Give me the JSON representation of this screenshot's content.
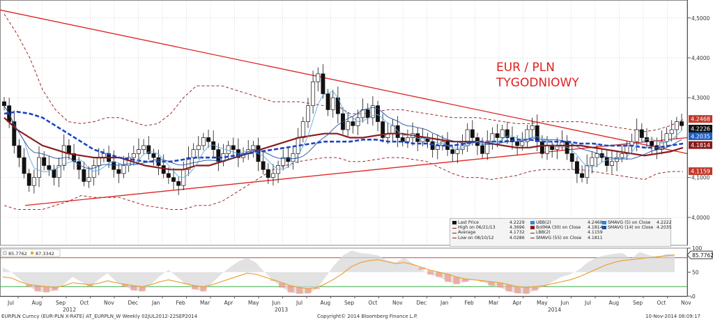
{
  "chart_data": [
    {
      "type": "candlestick",
      "title": "EUR / PLN",
      "subtitle": "TYGODNIOWY",
      "ylim": [
        3.93,
        4.545
      ],
      "y_ticks": [
        "4,5000",
        "4,4000",
        "4,3000",
        "4,1000",
        "4,0000"
      ],
      "y_tick_values": [
        4.5,
        4.4,
        4.3,
        4.1,
        4.0
      ],
      "x_month_labels": [
        "Jul",
        "Aug",
        "Sep",
        "Oct",
        "Nov",
        "Dec",
        "Jan",
        "Feb",
        "Mar",
        "Apr",
        "May",
        "Jun",
        "Jul",
        "Aug",
        "Sep",
        "Oct",
        "Nov",
        "Dec",
        "Jan",
        "Feb",
        "Mar",
        "Apr",
        "May",
        "Jun",
        "Jul",
        "Aug",
        "Sep",
        "Oct",
        "Nov"
      ],
      "x_year_labels": [
        "2012",
        "2013",
        "2014"
      ],
      "price_tags": [
        {
          "label": "4.2468",
          "value": 4.2468,
          "color": "#c0392b",
          "text_color": "#ffffff"
        },
        {
          "label": "4.2226",
          "value": 4.2226,
          "color": "#111111",
          "text_color": "#ffffff"
        },
        {
          "label": "4.2035",
          "value": 4.2035,
          "color": "#1f5fbf",
          "text_color": "#ffffff"
        },
        {
          "label": "4.1814",
          "value": 4.1814,
          "color": "#8b1a1a",
          "text_color": "#ffffff"
        },
        {
          "label": "4.1159",
          "value": 4.1159,
          "color": "#c0392b",
          "text_color": "#ffffff"
        }
      ],
      "close": [
        4.28,
        4.24,
        4.18,
        4.15,
        4.11,
        4.08,
        4.1,
        4.15,
        4.13,
        4.12,
        4.1,
        4.13,
        4.18,
        4.16,
        4.14,
        4.12,
        4.09,
        4.1,
        4.13,
        4.15,
        4.16,
        4.14,
        4.12,
        4.11,
        4.13,
        4.15,
        4.16,
        4.17,
        4.18,
        4.16,
        4.15,
        4.13,
        4.11,
        4.1,
        4.09,
        4.08,
        4.12,
        4.15,
        4.17,
        4.18,
        4.2,
        4.19,
        4.17,
        4.14,
        4.16,
        4.18,
        4.17,
        4.15,
        4.16,
        4.17,
        4.18,
        4.14,
        4.12,
        4.1,
        4.11,
        4.13,
        4.15,
        4.14,
        4.16,
        4.2,
        4.24,
        4.28,
        4.34,
        4.36,
        4.31,
        4.27,
        4.3,
        4.26,
        4.22,
        4.24,
        4.23,
        4.25,
        4.27,
        4.25,
        4.28,
        4.24,
        4.2,
        4.21,
        4.23,
        4.2,
        4.19,
        4.2,
        4.21,
        4.19,
        4.2,
        4.19,
        4.17,
        4.18,
        4.19,
        4.17,
        4.16,
        4.17,
        4.18,
        4.22,
        4.2,
        4.18,
        4.16,
        4.19,
        4.21,
        4.2,
        4.22,
        4.2,
        4.19,
        4.18,
        4.19,
        4.22,
        4.23,
        4.19,
        4.16,
        4.18,
        4.17,
        4.18,
        4.19,
        4.16,
        4.14,
        4.11,
        4.1,
        4.13,
        4.15,
        4.16,
        4.15,
        4.13,
        4.14,
        4.15,
        4.16,
        4.18,
        4.19,
        4.22,
        4.2,
        4.19,
        4.18,
        4.17,
        4.19,
        4.21,
        4.22,
        4.24,
        4.23
      ],
      "series": [
        {
          "name": "BollMA (30) on Close",
          "value": 4.1814,
          "color": "#8b1a1a",
          "values": [
            4.25,
            4.22,
            4.2,
            4.18,
            4.17,
            4.16,
            4.155,
            4.15,
            4.15,
            4.15,
            4.14,
            4.13,
            4.125,
            4.12,
            4.12,
            4.13,
            4.13,
            4.14,
            4.15,
            4.16,
            4.17,
            4.18,
            4.19,
            4.2,
            4.205,
            4.21,
            4.21,
            4.2,
            4.2,
            4.205,
            4.21,
            4.21,
            4.205,
            4.2,
            4.195,
            4.19,
            4.19,
            4.19,
            4.185,
            4.18,
            4.175,
            4.175,
            4.18,
            4.18,
            4.18,
            4.18,
            4.175,
            4.17,
            4.165,
            4.16,
            4.155,
            4.16,
            4.165,
            4.175
          ]
        },
        {
          "name": "SMAVG (55) on Close",
          "value": 4.1811,
          "color": "#1a43c8",
          "values": [
            4.26,
            4.265,
            4.26,
            4.25,
            4.23,
            4.21,
            4.19,
            4.17,
            4.16,
            4.15,
            4.145,
            4.14,
            4.14,
            4.14,
            4.145,
            4.15,
            4.15,
            4.15,
            4.155,
            4.16,
            4.165,
            4.17,
            4.175,
            4.18,
            4.185,
            4.19,
            4.19,
            4.19,
            4.195,
            4.195,
            4.19,
            4.19,
            4.185,
            4.185,
            4.18,
            4.18,
            4.185,
            4.19,
            4.19,
            4.19,
            4.195,
            4.195,
            4.19,
            4.19,
            4.19,
            4.185,
            4.185,
            4.18,
            4.18,
            4.18,
            4.175,
            4.175,
            4.18,
            4.185
          ]
        },
        {
          "name": "UBB(2)",
          "value": 4.2468,
          "color": "#9c2a2a"
        },
        {
          "name": "LBB(2)",
          "value": 4.1159,
          "color": "#9c2a2a"
        },
        {
          "name": "SMAVG (5) on Close",
          "value": 4.2222,
          "color": "#5aa9e6"
        },
        {
          "name": "SMAVG (14) on Close",
          "value": 4.2035,
          "color": "#1f4f9a"
        }
      ],
      "legend": [
        {
          "label": "Last Price",
          "value": "4.2229"
        },
        {
          "label": "High on 06/21/13",
          "value": "4.3696"
        },
        {
          "label": "Average",
          "value": "4.1732"
        },
        {
          "label": "Low on 08/10/12",
          "value": "4.0286"
        },
        {
          "label": "UBB(2)",
          "value": "4.2468"
        },
        {
          "label": "BollMA (30) on Close",
          "value": "4.1814"
        },
        {
          "label": "LBB(2)",
          "value": "4.1159"
        },
        {
          "label": "SMAVG (55) on Close",
          "value": "4.1811"
        },
        {
          "label": "SMAVG (5) on Close",
          "value": "4.2222"
        },
        {
          "label": "SMAVG (14) on Close",
          "value": "4.2035"
        }
      ]
    },
    {
      "type": "area",
      "ylim": [
        0,
        100
      ],
      "y_ticks": [
        "100",
        "50",
        "0"
      ],
      "y_tick_values": [
        100,
        50,
        0
      ],
      "reference_lines": [
        80,
        20
      ],
      "last_value_label": "85.7762",
      "series": [
        {
          "name": "",
          "label": "85.7762",
          "color": "#e8a33a",
          "values": [
            40,
            38,
            30,
            24,
            22,
            20,
            18,
            22,
            28,
            26,
            24,
            27,
            32,
            28,
            25,
            22,
            20,
            24,
            30,
            34,
            30,
            26,
            22,
            20,
            24,
            30,
            36,
            42,
            48,
            46,
            40,
            34,
            28,
            22,
            18,
            16,
            18,
            26,
            36,
            48,
            62,
            70,
            74,
            76,
            72,
            68,
            70,
            66,
            60,
            54,
            50,
            46,
            40,
            36,
            34,
            32,
            30,
            28,
            24,
            20,
            18,
            20,
            22,
            26,
            30,
            34,
            40,
            48,
            56,
            64,
            70,
            74,
            76,
            78,
            80,
            82,
            84,
            85.78
          ]
        },
        {
          "name": "",
          "label": "87.3342",
          "color": "#bbbbbb",
          "values": [
            60,
            50,
            35,
            20,
            10,
            8,
            12,
            25,
            40,
            30,
            20,
            35,
            48,
            30,
            20,
            12,
            10,
            25,
            42,
            55,
            40,
            25,
            14,
            10,
            28,
            45,
            60,
            72,
            80,
            70,
            50,
            32,
            18,
            8,
            5,
            6,
            15,
            40,
            65,
            85,
            95,
            90,
            88,
            85,
            75,
            70,
            80,
            68,
            55,
            45,
            40,
            30,
            25,
            30,
            35,
            30,
            22,
            18,
            10,
            6,
            5,
            12,
            20,
            30,
            40,
            45,
            55,
            70,
            80,
            85,
            88,
            90,
            78,
            92,
            86,
            80,
            88,
            87.33
          ]
        }
      ]
    }
  ],
  "footer": {
    "left": "EURPLN Curncy (EUR-PLN X-RATE)  AT_EURPLN_W  Weekly 02JUL2012-22SEP2014",
    "center": "Copyright© 2014 Bloomberg Finance L.P.",
    "right": "10-Nov-2014 08:09:17"
  }
}
